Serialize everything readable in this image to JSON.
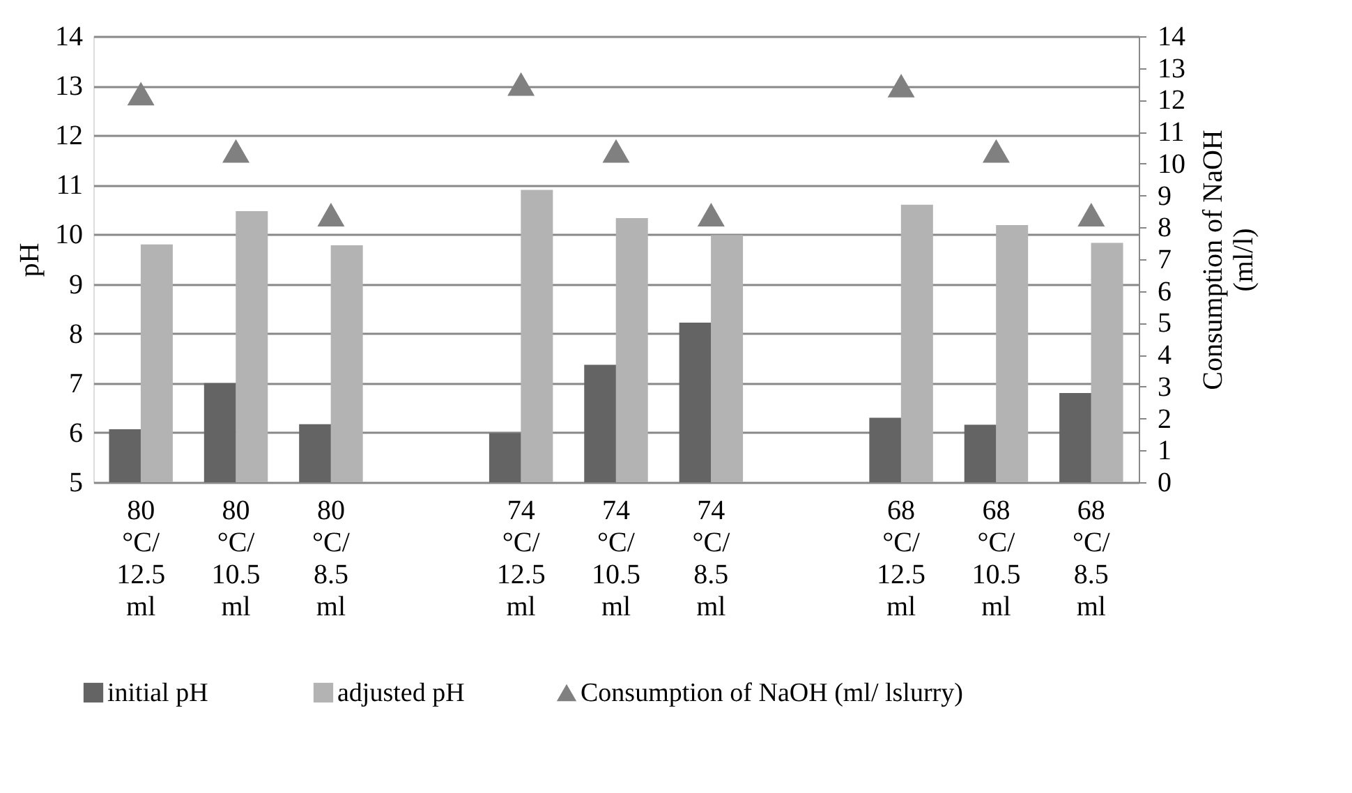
{
  "chart_data": {
    "type": "bar",
    "ylabel": "pH",
    "y2label": "Consumption of NaOH (ml/l)",
    "categories": [
      "80 °C/ 12.5 ml",
      "80 °C/ 10.5 ml",
      "80 °C/ 8.5 ml",
      null,
      "74 °C/ 12.5 ml",
      "74 °C/ 10.5 ml",
      "74 °C/ 8.5 ml",
      null,
      "68 °C/ 12.5 ml",
      "68 °C/ 10.5 ml",
      "68 °C/ 8.5 ml"
    ],
    "series": [
      {
        "name": "initial pH",
        "color": "#646464",
        "values": [
          6.07,
          7.0,
          6.17,
          null,
          5.99,
          7.37,
          8.22,
          null,
          6.3,
          6.16,
          6.8
        ]
      },
      {
        "name": "adjusted pH",
        "color": "#b3b3b3",
        "values": [
          9.8,
          10.47,
          9.78,
          null,
          10.9,
          10.33,
          9.99,
          null,
          10.6,
          10.19,
          9.83
        ]
      },
      {
        "name": "Consumption of NaOH (ml/ lslurry)",
        "type": "scatter",
        "axis": "y2",
        "marker": "triangle",
        "color": "#808080",
        "values": [
          12.2,
          10.4,
          8.4,
          null,
          12.5,
          10.4,
          8.4,
          null,
          12.45,
          10.4,
          8.4
        ]
      }
    ],
    "ylim": [
      5,
      14
    ],
    "yticks": [
      5,
      6,
      7,
      8,
      9,
      10,
      11,
      12,
      13,
      14
    ],
    "y2lim": [
      0,
      14
    ],
    "y2ticks": [
      0,
      1,
      2,
      3,
      4,
      5,
      6,
      7,
      8,
      9,
      10,
      11,
      12,
      13,
      14
    ],
    "grid": "y",
    "legend": "bottom"
  }
}
